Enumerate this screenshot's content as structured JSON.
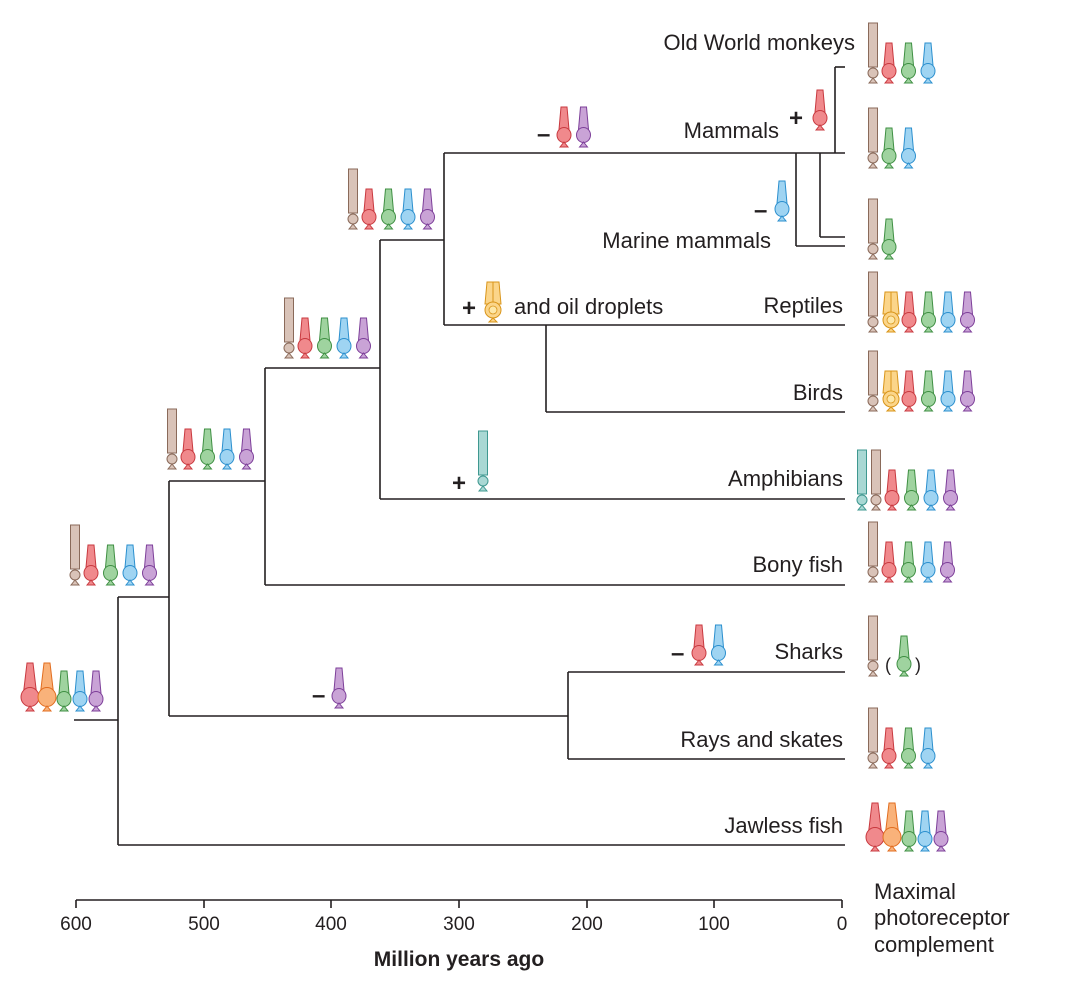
{
  "colors": {
    "rod": "#d9c3b8",
    "rod_stroke": "#8a6a5a",
    "lws": "#f0898c",
    "lws_stroke": "#c8393f",
    "orange": "#f9b27a",
    "orange_stroke": "#e26d1f",
    "yellow": "#fbd58a",
    "yellow_stroke": "#d9951a",
    "rh2": "#9fd39f",
    "rh2_stroke": "#3f8f43",
    "sws2": "#9fd4f2",
    "sws2_stroke": "#2b8fce",
    "sws1": "#c9a3d6",
    "sws1_stroke": "#7d3f99",
    "teal": "#a9d8d4",
    "teal_stroke": "#3f9890"
  },
  "taxa": [
    {
      "id": "old-world-monkeys",
      "label": "Old World monkeys"
    },
    {
      "id": "mammals",
      "label": "Mammals"
    },
    {
      "id": "marine-mammals",
      "label": "Marine mammals"
    },
    {
      "id": "reptiles",
      "label": "Reptiles"
    },
    {
      "id": "birds",
      "label": "Birds"
    },
    {
      "id": "amphibians",
      "label": "Amphibians"
    },
    {
      "id": "bony-fish",
      "label": "Bony fish"
    },
    {
      "id": "sharks",
      "label": "Sharks"
    },
    {
      "id": "rays-and-skates",
      "label": "Rays and skates"
    },
    {
      "id": "jawless-fish",
      "label": "Jawless fish"
    }
  ],
  "annotations": {
    "plus": "+",
    "minus": "–",
    "oil_droplets": "and oil droplets",
    "paren_open": "(",
    "paren_close": ")"
  },
  "axis": {
    "ticks": [
      "600",
      "500",
      "400",
      "300",
      "200",
      "100",
      "0"
    ],
    "title": "Million years ago"
  },
  "column_title": [
    "Maximal",
    "photoreceptor",
    "complement"
  ]
}
